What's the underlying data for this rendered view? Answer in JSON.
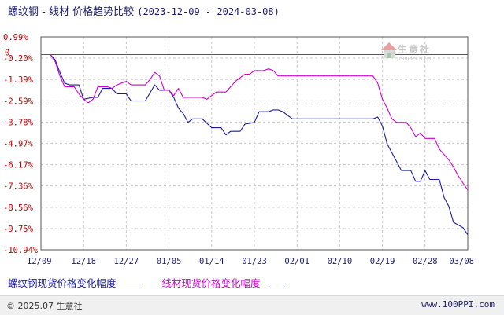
{
  "header": {
    "title": "螺纹钢 - 线材 价格趋势比较",
    "date_range": "(2023-12-09 - 2024-03-08)"
  },
  "watermark": {
    "name": "生意社",
    "site": "100PPI.COM"
  },
  "legend": {
    "items": [
      {
        "label": "螺纹钢现货价格变化幅度",
        "color": "#1a1a9e"
      },
      {
        "label": "线材现货价格变化幅度",
        "color": "#d000d0"
      }
    ]
  },
  "footer": {
    "copyright": "© 2025.07 生意社",
    "site": "www.100PPI.com"
  },
  "chart_data": {
    "type": "line",
    "y_tick_labels": [
      "0.99%",
      "-0.20%",
      "-1.39%",
      "-2.59%",
      "-3.78%",
      "-4.97%",
      "-6.17%",
      "-7.36%",
      "-8.56%",
      "-9.75%",
      "-10.94%"
    ],
    "y_ticks": [
      0.99,
      -0.2,
      -1.39,
      -2.59,
      -3.78,
      -4.97,
      -6.17,
      -7.36,
      -8.56,
      -9.75,
      -10.94
    ],
    "ylim": [
      -10.94,
      0.99
    ],
    "zero_label": "0",
    "x_tick_labels": [
      "12/09",
      "12/18",
      "12/27",
      "01/05",
      "01/14",
      "01/23",
      "02/01",
      "02/10",
      "02/19",
      "02/28",
      "03/08"
    ],
    "x_ticks": [
      "2023-12-09",
      "2023-12-18",
      "2023-12-27",
      "2024-01-05",
      "2024-01-14",
      "2024-01-23",
      "2024-02-01",
      "2024-02-10",
      "2024-02-19",
      "2024-02-28",
      "2024-03-08"
    ],
    "xlim": [
      "2023-12-09",
      "2024-03-08"
    ],
    "grid": true,
    "legend_position": "bottom",
    "series": [
      {
        "name": "螺纹钢现货价格变化幅度",
        "color": "#1a1a9e",
        "points": [
          [
            "2023-12-09",
            0.0
          ],
          [
            "2023-12-11",
            0.0
          ],
          [
            "2023-12-12",
            -0.3
          ],
          [
            "2023-12-13",
            -1.0
          ],
          [
            "2023-12-14",
            -1.6
          ],
          [
            "2023-12-15",
            -1.7
          ],
          [
            "2023-12-17",
            -1.7
          ],
          [
            "2023-12-18",
            -2.5
          ],
          [
            "2023-12-20",
            -2.4
          ],
          [
            "2023-12-21",
            -2.4
          ],
          [
            "2023-12-22",
            -1.9
          ],
          [
            "2023-12-24",
            -1.9
          ],
          [
            "2023-12-25",
            -2.2
          ],
          [
            "2023-12-27",
            -2.2
          ],
          [
            "2023-12-28",
            -2.6
          ],
          [
            "2023-12-31",
            -2.6
          ],
          [
            "2024-01-02",
            -1.7
          ],
          [
            "2024-01-03",
            -2.0
          ],
          [
            "2024-01-05",
            -2.0
          ],
          [
            "2024-01-06",
            -2.4
          ],
          [
            "2024-01-07",
            -3.0
          ],
          [
            "2024-01-08",
            -3.3
          ],
          [
            "2024-01-09",
            -3.8
          ],
          [
            "2024-01-10",
            -3.6
          ],
          [
            "2024-01-12",
            -3.6
          ],
          [
            "2024-01-14",
            -4.1
          ],
          [
            "2024-01-16",
            -4.1
          ],
          [
            "2024-01-17",
            -4.5
          ],
          [
            "2024-01-18",
            -4.3
          ],
          [
            "2024-01-20",
            -4.3
          ],
          [
            "2024-01-21",
            -3.9
          ],
          [
            "2024-01-23",
            -3.8
          ],
          [
            "2024-01-24",
            -3.2
          ],
          [
            "2024-01-26",
            -3.2
          ],
          [
            "2024-01-27",
            -3.1
          ],
          [
            "2024-01-28",
            -3.1
          ],
          [
            "2024-01-29",
            -3.2
          ],
          [
            "2024-01-31",
            -3.6
          ],
          [
            "2024-02-17",
            -3.6
          ],
          [
            "2024-02-18",
            -3.5
          ],
          [
            "2024-02-19",
            -4.0
          ],
          [
            "2024-02-20",
            -5.0
          ],
          [
            "2024-02-22",
            -6.0
          ],
          [
            "2024-02-23",
            -6.5
          ],
          [
            "2024-02-25",
            -6.5
          ],
          [
            "2024-02-26",
            -7.1
          ],
          [
            "2024-02-27",
            -7.1
          ],
          [
            "2024-02-28",
            -6.5
          ],
          [
            "2024-02-29",
            -7.0
          ],
          [
            "2024-03-02",
            -7.0
          ],
          [
            "2024-03-03",
            -8.0
          ],
          [
            "2024-03-04",
            -8.5
          ],
          [
            "2024-03-05",
            -9.4
          ],
          [
            "2024-03-07",
            -9.7
          ],
          [
            "2024-03-08",
            -10.1
          ]
        ]
      },
      {
        "name": "线材现货价格变化幅度",
        "color": "#d000d0",
        "points": [
          [
            "2023-12-09",
            0.0
          ],
          [
            "2023-12-11",
            0.0
          ],
          [
            "2023-12-12",
            -0.4
          ],
          [
            "2023-12-13",
            -1.2
          ],
          [
            "2023-12-14",
            -1.8
          ],
          [
            "2023-12-16",
            -1.8
          ],
          [
            "2023-12-17",
            -2.2
          ],
          [
            "2023-12-18",
            -2.5
          ],
          [
            "2023-12-19",
            -2.7
          ],
          [
            "2023-12-20",
            -2.5
          ],
          [
            "2023-12-21",
            -1.8
          ],
          [
            "2023-12-23",
            -1.8
          ],
          [
            "2023-12-24",
            -1.9
          ],
          [
            "2023-12-25",
            -1.7
          ],
          [
            "2023-12-26",
            -1.6
          ],
          [
            "2023-12-27",
            -1.5
          ],
          [
            "2023-12-28",
            -1.7
          ],
          [
            "2023-12-31",
            -1.7
          ],
          [
            "2024-01-01",
            -1.4
          ],
          [
            "2024-01-02",
            -1.0
          ],
          [
            "2024-01-03",
            -1.2
          ],
          [
            "2024-01-04",
            -2.0
          ],
          [
            "2024-01-05",
            -2.0
          ],
          [
            "2024-01-06",
            -2.3
          ],
          [
            "2024-01-07",
            -1.9
          ],
          [
            "2024-01-08",
            -2.4
          ],
          [
            "2024-01-12",
            -2.4
          ],
          [
            "2024-01-13",
            -2.5
          ],
          [
            "2024-01-14",
            -2.3
          ],
          [
            "2024-01-15",
            -2.1
          ],
          [
            "2024-01-17",
            -2.1
          ],
          [
            "2024-01-19",
            -1.5
          ],
          [
            "2024-01-21",
            -1.1
          ],
          [
            "2024-01-22",
            -1.1
          ],
          [
            "2024-01-23",
            -0.9
          ],
          [
            "2024-01-25",
            -0.9
          ],
          [
            "2024-01-26",
            -0.8
          ],
          [
            "2024-01-27",
            -0.9
          ],
          [
            "2024-01-28",
            -1.2
          ],
          [
            "2024-02-17",
            -1.2
          ],
          [
            "2024-02-18",
            -1.6
          ],
          [
            "2024-02-19",
            -2.5
          ],
          [
            "2024-02-20",
            -3.0
          ],
          [
            "2024-02-21",
            -3.6
          ],
          [
            "2024-02-22",
            -3.8
          ],
          [
            "2024-02-24",
            -3.8
          ],
          [
            "2024-02-25",
            -4.1
          ],
          [
            "2024-02-26",
            -4.6
          ],
          [
            "2024-02-27",
            -4.4
          ],
          [
            "2024-02-28",
            -4.7
          ],
          [
            "2024-03-01",
            -4.7
          ],
          [
            "2024-03-02",
            -5.3
          ],
          [
            "2024-03-04",
            -5.9
          ],
          [
            "2024-03-05",
            -6.3
          ],
          [
            "2024-03-06",
            -6.8
          ],
          [
            "2024-03-07",
            -7.2
          ],
          [
            "2024-03-08",
            -7.6
          ]
        ]
      }
    ]
  }
}
